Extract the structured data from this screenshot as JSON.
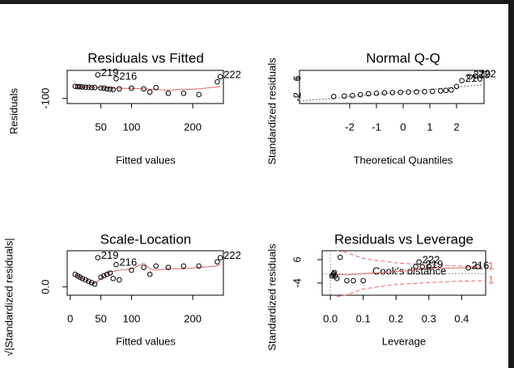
{
  "chart_data": [
    {
      "type": "scatter",
      "title": "Residuals vs Fitted",
      "xlabel": "Fitted values",
      "ylabel": "Residuals",
      "x": [
        8,
        12,
        16,
        20,
        25,
        30,
        35,
        40,
        45,
        50,
        55,
        60,
        65,
        70,
        75,
        80,
        100,
        120,
        130,
        140,
        160,
        185,
        210,
        240,
        245
      ],
      "values": [
        -5,
        -8,
        -8,
        -10,
        -12,
        -12,
        -15,
        -15,
        85,
        -18,
        -20,
        -25,
        -28,
        -30,
        55,
        -25,
        -20,
        -25,
        -50,
        -15,
        -60,
        -60,
        -70,
        30,
        70
      ],
      "value_labels": [
        null,
        null,
        null,
        null,
        null,
        null,
        null,
        null,
        "219",
        null,
        null,
        null,
        null,
        null,
        "216",
        null,
        null,
        null,
        null,
        null,
        null,
        null,
        null,
        null,
        "222"
      ],
      "smooth": [
        -5,
        -6,
        -8,
        -9,
        -10,
        -11,
        -12,
        -13,
        -14,
        -15,
        -16,
        -17,
        -18,
        -19,
        -20,
        -20,
        -22,
        -25,
        -28,
        -30,
        -35,
        -30,
        -25,
        -10,
        -5
      ],
      "color": "#000000",
      "smooth_color": "#e06666",
      "xlim": [
        -5,
        250
      ],
      "xticks": [
        50,
        100,
        200
      ],
      "ylim": [
        -140,
        120
      ],
      "yticks": [
        -100
      ]
    },
    {
      "type": "scatter",
      "title": "Normal Q-Q",
      "xlabel": "Theoretical Quantiles",
      "ylabel": "Standardized residuals",
      "x": [
        -2.6,
        -2.2,
        -1.9,
        -1.6,
        -1.3,
        -1.0,
        -0.7,
        -0.4,
        -0.1,
        0.2,
        0.5,
        0.8,
        1.1,
        1.4,
        1.6,
        1.8,
        2.0,
        2.2,
        2.5,
        2.7
      ],
      "values": [
        -1.8,
        -1.6,
        -1.4,
        -1.0,
        -0.6,
        -0.4,
        -0.2,
        -0.1,
        0,
        0.1,
        0.2,
        0.3,
        0.4,
        0.6,
        0.8,
        1.0,
        2.5,
        5.0,
        6.6,
        7.0
      ],
      "value_labels": [
        null,
        null,
        null,
        null,
        null,
        null,
        null,
        null,
        null,
        null,
        null,
        null,
        null,
        null,
        null,
        null,
        null,
        "216",
        "219",
        "222"
      ],
      "color": "#000000",
      "xlim": [
        -3.88,
        3.03
      ],
      "xticks": [
        -2,
        -1,
        0,
        1,
        2
      ],
      "ylim": [
        -4.8,
        9.4
      ],
      "yticks": [
        -2,
        6
      ]
    },
    {
      "type": "scatter",
      "title": "Scale-Location",
      "xlabel": "Fitted values",
      "ylabel": "√|Standardized residuals|",
      "x": [
        8,
        12,
        16,
        20,
        25,
        30,
        35,
        40,
        45,
        50,
        55,
        60,
        65,
        70,
        75,
        80,
        100,
        120,
        130,
        140,
        160,
        185,
        210,
        240,
        245
      ],
      "values": [
        0.9,
        0.8,
        0.7,
        0.6,
        0.5,
        0.4,
        0.3,
        0.2,
        2.1,
        0.7,
        0.8,
        0.9,
        1.0,
        0.6,
        1.6,
        0.5,
        1.2,
        1.4,
        0.9,
        1.5,
        1.4,
        1.5,
        1.5,
        1.8,
        2.1
      ],
      "value_labels": [
        null,
        null,
        null,
        null,
        null,
        null,
        null,
        null,
        "219",
        null,
        null,
        null,
        null,
        null,
        "216",
        null,
        null,
        null,
        null,
        null,
        null,
        null,
        null,
        null,
        "222"
      ],
      "smooth": [
        0.9,
        0.8,
        0.7,
        0.6,
        0.5,
        0.4,
        0.3,
        0.25,
        0.4,
        0.6,
        0.8,
        1.0,
        1.1,
        1.1,
        1.15,
        1.2,
        1.3,
        1.7,
        1.3,
        1.2,
        1.3,
        1.3,
        1.4,
        1.5,
        1.6
      ],
      "color": "#000000",
      "smooth_color": "#e06666",
      "xlim": [
        -5,
        250
      ],
      "xticks": [
        0,
        50,
        100,
        200
      ],
      "ylim": [
        -0.6,
        2.6
      ],
      "yticks": [
        {
          "value": 0,
          "label": "0.0"
        }
      ]
    },
    {
      "type": "scatter",
      "title": "Residuals vs Leverage",
      "xlabel": "Leverage",
      "ylabel": "Standardized residuals",
      "x": [
        0.005,
        0.008,
        0.01,
        0.012,
        0.015,
        0.02,
        0.03,
        0.05,
        0.07,
        0.1,
        0.26,
        0.27,
        0.28,
        0.3,
        0.42,
        0.45
      ],
      "values": [
        -1,
        -0.5,
        0,
        0.5,
        -1,
        -2,
        7,
        -3,
        -3,
        -3,
        3,
        5,
        3,
        3,
        2.5,
        3
      ],
      "value_labels": [
        null,
        null,
        null,
        null,
        null,
        null,
        null,
        null,
        null,
        null,
        null,
        "222",
        "219",
        null,
        "216",
        null
      ],
      "smooth": [
        -0.5,
        -0.4,
        -0.3,
        -0.2,
        -0.2,
        -0.3,
        -0.3,
        -0.5,
        -0.3,
        0,
        1.5,
        2,
        2.2,
        2.3,
        2.5,
        2.6
      ],
      "color": "#000000",
      "smooth_color": "#e06666",
      "contour_x": [
        0.02,
        0.05,
        0.1,
        0.2,
        0.3,
        0.4,
        0.47
      ],
      "contours": [
        {
          "label": "1",
          "values": [
            9.8,
            9,
            6.5,
            4.6,
            3.8,
            3.2,
            3.0
          ]
        },
        {
          "label": "1",
          "values": [
            -9.8,
            -9,
            -6.5,
            -4.6,
            -3.8,
            -3.2,
            -3.0
          ]
        }
      ],
      "contour_legend": "Cook's distance",
      "xlim": [
        -0.025,
        0.473
      ],
      "xticks": [
        {
          "value": 0,
          "label": "0.0"
        },
        {
          "value": 0.1,
          "label": "0.1"
        },
        {
          "value": 0.2,
          "label": "0.2"
        },
        {
          "value": 0.3,
          "label": "0.3"
        },
        {
          "value": 0.4,
          "label": "0.4"
        }
      ],
      "ylim": [
        -9.2,
        9.8
      ],
      "yticks": [
        -4,
        6
      ]
    }
  ]
}
